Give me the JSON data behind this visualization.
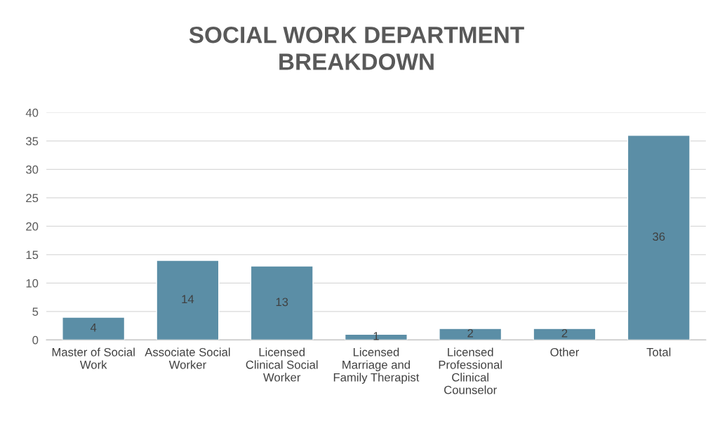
{
  "chart_data": {
    "type": "bar",
    "title": "SOCIAL WORK DEPARTMENT BREAKDOWN",
    "categories": [
      "Master of Social Work",
      "Associate Social Worker",
      "Licensed Clinical Social Worker",
      "Licensed Marriage and Family Therapist",
      "Licensed Professional Clinical Counselor",
      "Other",
      "Total"
    ],
    "values": [
      4,
      14,
      13,
      1,
      2,
      2,
      36
    ],
    "color": "#5b8ea6",
    "ylim": [
      0,
      40
    ],
    "yticks": [
      0,
      5,
      10,
      15,
      20,
      25,
      30,
      35,
      40
    ],
    "grid": "y",
    "data_labels": true
  }
}
